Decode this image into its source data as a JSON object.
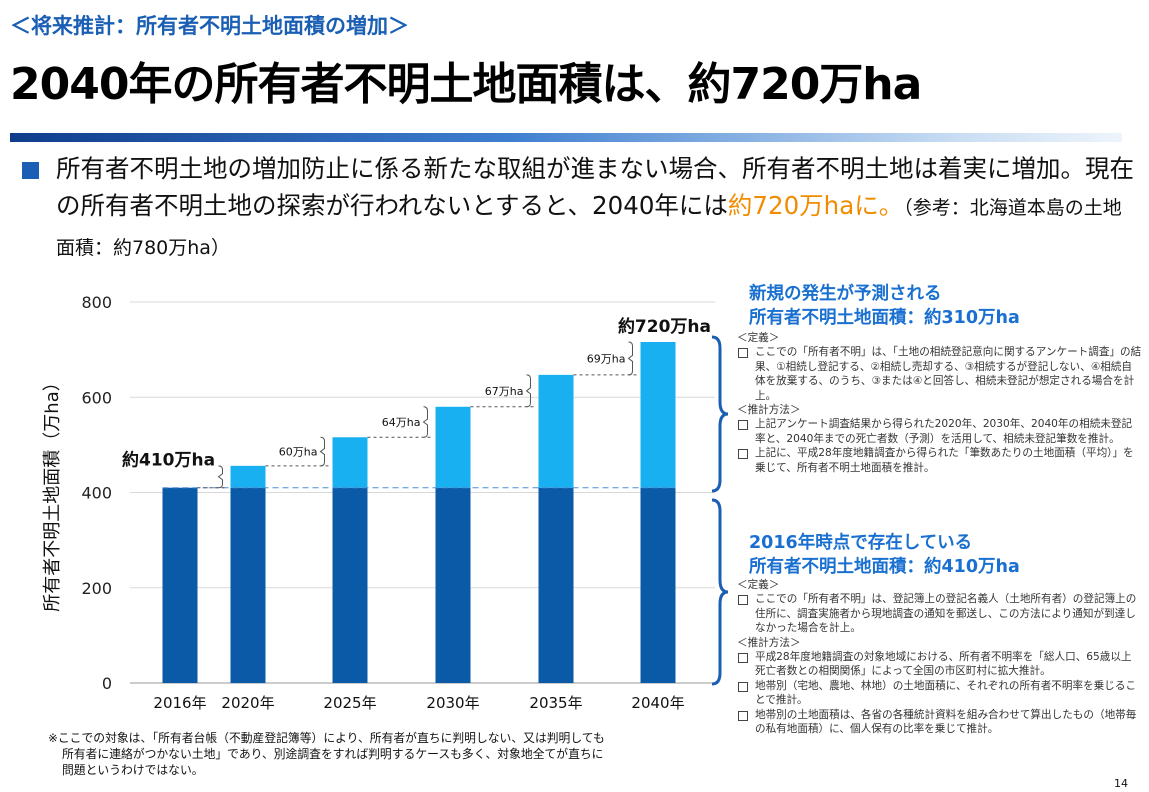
{
  "slide": {
    "subtitle": "＜将来推計：所有者不明土地面積の増加＞",
    "title": "2040年の所有者不明土地面積は、約720万ha",
    "intro_part1": "所有者不明土地の増加防止に係る新たな取組が進まない場合、所有者不明土地は着実に増加。現在の所有者不明土地の探索が行われないとすると、2040年には",
    "intro_highlight": "約720万haに。",
    "intro_note": "（参考：北海道本島の土地面積：約780万ha）",
    "page_number": "14",
    "footnote_line1": "※ここでの対象は、「所有者台帳（不動産登記簿等）により、所有者が直ちに判明しない、又は判明しても",
    "footnote_line2": "所有者に連絡がつかない土地」であり、別途調査をすれば判明するケースも多く、対象地全てが直ちに",
    "footnote_line3": "問題というわけではない。"
  },
  "colors": {
    "accent": "#1a5fb4",
    "base_bar": "#0a5aa8",
    "increment_bar": "#18b0f0",
    "highlight": "#f08c00",
    "section_heading": "#1a70d0"
  },
  "chart_data": {
    "type": "bar",
    "stacked": true,
    "categories": [
      "2016年",
      "2020年",
      "2025年",
      "2030年",
      "2035年",
      "2040年"
    ],
    "series": [
      {
        "name": "2016年時点で存在している所有者不明土地面積",
        "values": [
          410,
          410,
          410,
          410,
          410,
          410
        ]
      },
      {
        "name": "新規の発生が予測される所有者不明土地面積",
        "values": [
          0,
          46,
          106,
          170,
          237,
          306
        ]
      }
    ],
    "totals": [
      410,
      456,
      516,
      580,
      647,
      716
    ],
    "increment_labels": [
      "",
      "60万ha",
      "64万ha",
      "67万ha",
      "69万ha"
    ],
    "start_label": "約410万ha",
    "end_label": "約720万ha",
    "ylabel": "所有者不明土地面積（万ha）",
    "xlabel": "",
    "ylim": [
      0,
      800
    ],
    "yticks": [
      0,
      200,
      400,
      600,
      800
    ],
    "grid": true
  },
  "new_section": {
    "heading_line1": "新規の発生が予測される",
    "heading_line2": "所有者不明土地面積：約310万ha",
    "def_label": "＜定義＞",
    "def_items": [
      "ここでの「所有者不明」は、「土地の相続登記意向に関するアンケート調査」の結果、①相続し登記する、②相続し売却する、③相続するが登記しない、④相続自体を放棄する、のうち、③または④と回答し、相続未登記が想定される場合を計上。"
    ],
    "method_label": "＜推計方法＞",
    "method_items": [
      "上記アンケート調査結果から得られた2020年、2030年、2040年の相続未登記率と、2040年までの死亡者数（予測）を活用して、相続未登記筆数を推計。",
      "上記に、平成28年度地籍調査から得られた「筆数あたりの土地面積（平均）」を乗じて、所有者不明土地面積を推計。"
    ]
  },
  "existing_section": {
    "heading_line1": "2016年時点で存在している",
    "heading_line2": "所有者不明土地面積：約410万ha",
    "def_label": "＜定義＞",
    "def_items": [
      "ここでの「所有者不明」は、登記簿上の登記名義人（土地所有者）の登記簿上の住所に、調査実施者から現地調査の通知を郵送し、この方法により通知が到達しなかった場合を計上。"
    ],
    "method_label": "＜推計方法＞",
    "method_items": [
      "平成28年度地籍調査の対象地域における、所有者不明率を「総人口、65歳以上死亡者数との相関関係」によって全国の市区町村に拡大推計。",
      "地帯別（宅地、農地、林地）の土地面積に、それぞれの所有者不明率を乗じることで推計。",
      "地帯別の土地面積は、各省の各種統計資料を組み合わせて算出したもの（地帯毎の私有地面積）に、個人保有の比率を乗じて推計。"
    ]
  }
}
